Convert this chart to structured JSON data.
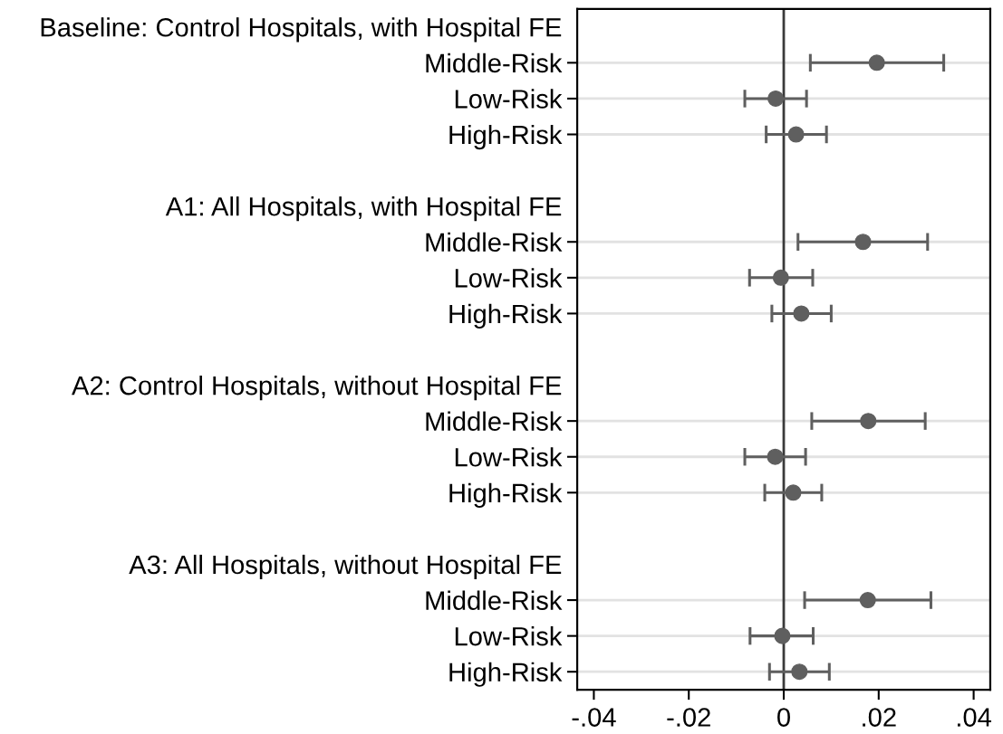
{
  "chart_data": {
    "type": "scatter",
    "orientation": "horizontal",
    "categories": [
      "Baseline: Control Hospitals, with Hospital FE",
      "Middle-Risk",
      "Low-Risk",
      "High-Risk",
      null,
      "A1: All Hospitals, with Hospital FE",
      "Middle-Risk",
      "Low-Risk",
      "High-Risk",
      null,
      "A2: Control Hospitals, without Hospital FE",
      "Middle-Risk",
      "Low-Risk",
      "High-Risk",
      null,
      "A3: All Hospitals, without Hospital FE",
      "Middle-Risk",
      "Low-Risk",
      "High-Risk"
    ],
    "values": [
      null,
      0.0196,
      -0.0017,
      0.0026,
      null,
      null,
      0.0167,
      -0.0006,
      0.0037,
      null,
      null,
      0.0178,
      -0.0018,
      0.002,
      null,
      null,
      0.0177,
      -0.0003,
      0.0033
    ],
    "errors": [
      null,
      [
        0.0056,
        0.0337
      ],
      [
        -0.0082,
        0.0048
      ],
      [
        -0.0037,
        0.009
      ],
      null,
      null,
      [
        0.003,
        0.0303
      ],
      [
        -0.0072,
        0.0061
      ],
      [
        -0.0025,
        0.01
      ],
      null,
      null,
      [
        0.0059,
        0.0298
      ],
      [
        -0.0082,
        0.0046
      ],
      [
        -0.004,
        0.008
      ],
      null,
      null,
      [
        0.0044,
        0.031
      ],
      [
        -0.0071,
        0.0062
      ],
      [
        -0.003,
        0.0096
      ]
    ],
    "color": "#5f5f5f",
    "marker": "circle",
    "xlim": [
      -0.0435,
      0.0435
    ],
    "xticks": [
      {
        "value": -0.04,
        "label": "-.04"
      },
      {
        "value": -0.02,
        "label": "-.02"
      },
      0,
      {
        "value": 0.02,
        "label": ".02"
      },
      {
        "value": 0.04,
        "label": ".04"
      }
    ],
    "grid": "y",
    "ref_lines": [
      {
        "axis": "x",
        "value": 0,
        "color": "#3a3a3a"
      }
    ]
  }
}
